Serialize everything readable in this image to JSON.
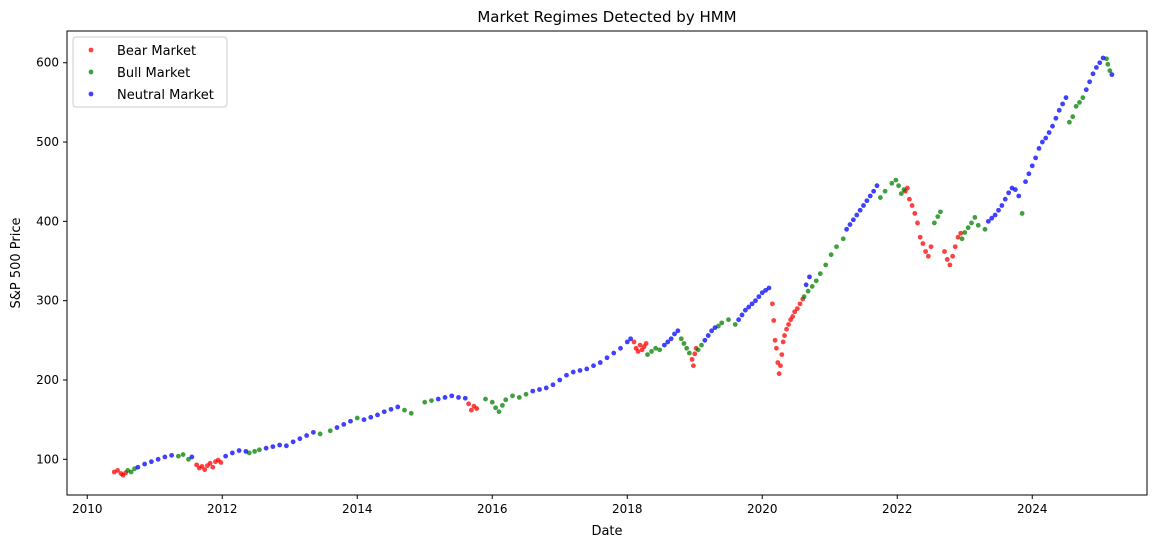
{
  "chart_data": {
    "type": "scatter",
    "title": "Market Regimes Detected by HMM",
    "xlabel": "Date",
    "ylabel": "S&P 500 Price",
    "xlim": [
      2009.7,
      2025.7
    ],
    "ylim": [
      55,
      640
    ],
    "x_ticks": [
      2010,
      2012,
      2014,
      2016,
      2018,
      2020,
      2022,
      2024
    ],
    "y_ticks": [
      100,
      200,
      300,
      400,
      500,
      600
    ],
    "grid": false,
    "legend_position": "top-left",
    "series": [
      {
        "name": "Bear Market",
        "color": "#ff0000",
        "x": [
          2010.4,
          2010.45,
          2010.5,
          2010.53,
          2010.57,
          2011.62,
          2011.66,
          2011.7,
          2011.74,
          2011.78,
          2011.82,
          2011.86,
          2011.9,
          2011.94,
          2011.98,
          2015.65,
          2015.69,
          2015.73,
          2015.77,
          2018.1,
          2018.13,
          2018.16,
          2018.19,
          2018.22,
          2018.25,
          2018.28,
          2018.96,
          2018.98,
          2019.0,
          2019.02,
          2020.15,
          2020.17,
          2020.19,
          2020.21,
          2020.23,
          2020.25,
          2020.27,
          2020.29,
          2020.31,
          2020.33,
          2020.36,
          2020.39,
          2020.42,
          2020.45,
          2020.48,
          2020.52,
          2020.56,
          2020.6,
          2022.12,
          2022.15,
          2022.18,
          2022.22,
          2022.26,
          2022.3,
          2022.34,
          2022.38,
          2022.42,
          2022.46,
          2022.5,
          2022.7,
          2022.74,
          2022.78,
          2022.82,
          2022.86,
          2022.9,
          2022.94
        ],
        "y": [
          84,
          86,
          82,
          80,
          83,
          93,
          89,
          91,
          87,
          92,
          95,
          90,
          97,
          99,
          96,
          170,
          162,
          167,
          164,
          248,
          240,
          236,
          244,
          238,
          242,
          246,
          226,
          218,
          233,
          240,
          296,
          275,
          250,
          240,
          222,
          208,
          218,
          232,
          248,
          256,
          264,
          270,
          276,
          280,
          286,
          290,
          296,
          302,
          438,
          442,
          428,
          420,
          410,
          398,
          380,
          372,
          362,
          356,
          368,
          362,
          352,
          345,
          356,
          368,
          380,
          385
        ]
      },
      {
        "name": "Bull Market",
        "color": "#008000",
        "x": [
          2010.6,
          2010.65,
          2010.7,
          2011.35,
          2011.42,
          2011.5,
          2012.4,
          2012.48,
          2012.55,
          2013.45,
          2013.6,
          2014.0,
          2014.7,
          2014.8,
          2015.0,
          2015.1,
          2015.9,
          2016.0,
          2016.05,
          2016.1,
          2016.15,
          2016.2,
          2016.3,
          2016.4,
          2016.5,
          2018.3,
          2018.36,
          2018.42,
          2018.48,
          2018.8,
          2018.84,
          2018.88,
          2018.92,
          2019.05,
          2019.1,
          2019.35,
          2019.4,
          2019.5,
          2019.6,
          2020.62,
          2020.68,
          2020.74,
          2020.8,
          2020.86,
          2020.94,
          2021.02,
          2021.1,
          2021.2,
          2021.75,
          2021.82,
          2021.92,
          2021.98,
          2022.02,
          2022.06,
          2022.1,
          2022.55,
          2022.6,
          2022.64,
          2022.96,
          2023.0,
          2023.05,
          2023.1,
          2023.15,
          2023.2,
          2023.3,
          2023.85,
          2024.55,
          2024.6,
          2024.65,
          2024.7,
          2024.75,
          2025.1,
          2025.12,
          2025.15
        ],
        "y": [
          86,
          84,
          88,
          104,
          106,
          100,
          108,
          110,
          112,
          132,
          136,
          152,
          162,
          158,
          172,
          174,
          176,
          172,
          165,
          160,
          168,
          175,
          180,
          178,
          182,
          232,
          236,
          240,
          238,
          252,
          246,
          240,
          234,
          238,
          244,
          268,
          272,
          276,
          270,
          305,
          312,
          318,
          325,
          334,
          345,
          358,
          368,
          378,
          430,
          438,
          448,
          452,
          445,
          435,
          440,
          398,
          406,
          412,
          378,
          386,
          392,
          398,
          405,
          395,
          390,
          410,
          525,
          532,
          545,
          550,
          556,
          605,
          598,
          590
        ]
      },
      {
        "name": "Neutral Market",
        "color": "#0000ff",
        "x": [
          2010.75,
          2010.85,
          2010.95,
          2011.05,
          2011.15,
          2011.25,
          2011.55,
          2012.05,
          2012.15,
          2012.25,
          2012.35,
          2012.65,
          2012.75,
          2012.85,
          2012.95,
          2013.05,
          2013.15,
          2013.25,
          2013.35,
          2013.7,
          2013.8,
          2013.9,
          2014.1,
          2014.2,
          2014.3,
          2014.4,
          2014.5,
          2014.6,
          2015.2,
          2015.3,
          2015.4,
          2015.5,
          2015.6,
          2016.6,
          2016.7,
          2016.8,
          2016.9,
          2017.0,
          2017.1,
          2017.2,
          2017.3,
          2017.4,
          2017.5,
          2017.6,
          2017.7,
          2017.8,
          2017.9,
          2018.0,
          2018.05,
          2018.55,
          2018.6,
          2018.65,
          2018.7,
          2018.75,
          2019.15,
          2019.2,
          2019.25,
          2019.3,
          2019.65,
          2019.7,
          2019.75,
          2019.8,
          2019.85,
          2019.9,
          2019.95,
          2020.0,
          2020.05,
          2020.1,
          2020.65,
          2020.7,
          2021.25,
          2021.3,
          2021.35,
          2021.4,
          2021.45,
          2021.5,
          2021.55,
          2021.6,
          2021.65,
          2021.7,
          2023.35,
          2023.4,
          2023.45,
          2023.5,
          2023.55,
          2023.6,
          2023.65,
          2023.7,
          2023.75,
          2023.8,
          2023.9,
          2023.95,
          2024.0,
          2024.05,
          2024.1,
          2024.15,
          2024.2,
          2024.25,
          2024.3,
          2024.35,
          2024.4,
          2024.45,
          2024.5,
          2024.8,
          2024.85,
          2024.9,
          2024.95,
          2025.0,
          2025.05,
          2025.18
        ],
        "y": [
          90,
          94,
          97,
          100,
          103,
          105,
          103,
          104,
          108,
          111,
          110,
          114,
          116,
          118,
          117,
          122,
          126,
          130,
          134,
          140,
          144,
          148,
          150,
          153,
          156,
          160,
          163,
          166,
          176,
          178,
          180,
          178,
          177,
          186,
          188,
          190,
          194,
          200,
          206,
          210,
          212,
          214,
          218,
          222,
          228,
          234,
          240,
          248,
          252,
          244,
          248,
          252,
          258,
          262,
          250,
          256,
          262,
          266,
          276,
          282,
          288,
          292,
          296,
          300,
          305,
          310,
          313,
          316,
          320,
          330,
          390,
          396,
          402,
          408,
          414,
          420,
          426,
          432,
          438,
          445,
          400,
          404,
          408,
          414,
          420,
          428,
          436,
          442,
          440,
          432,
          450,
          460,
          470,
          480,
          492,
          500,
          505,
          512,
          520,
          530,
          540,
          548,
          556,
          566,
          576,
          586,
          594,
          600,
          606,
          585
        ]
      }
    ]
  }
}
